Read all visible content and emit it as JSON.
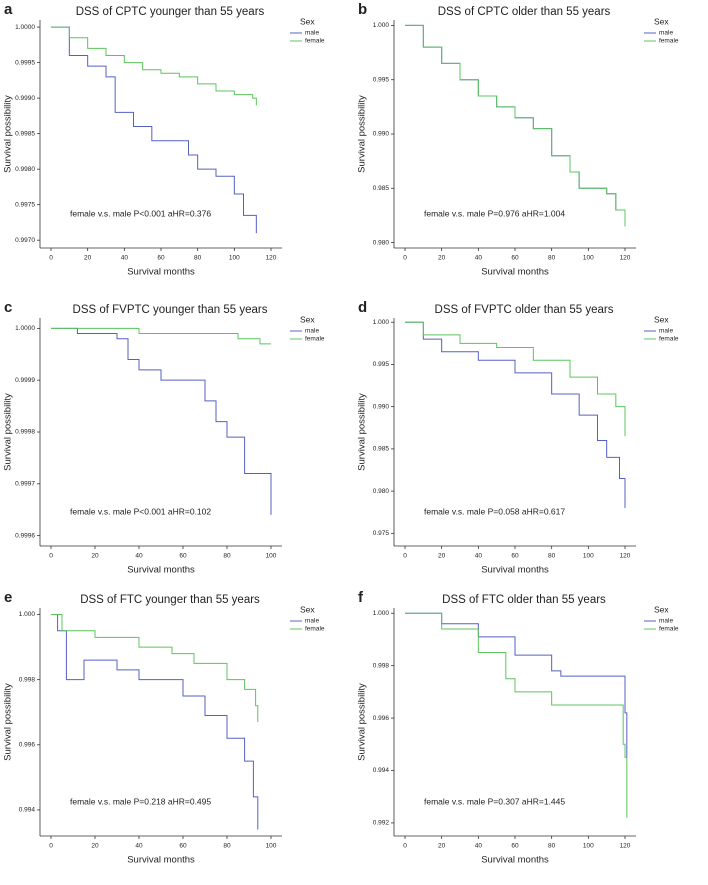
{
  "chart_data": [
    {
      "type": "step",
      "letter": "a",
      "title": "DSS of CPTC younger than 55 years",
      "x_label": "Survival months",
      "y_label": "Survival possibility",
      "annotation": "female v.s. male P<0.001 aHR=0.376",
      "legend_title": "Sex",
      "xlim": [
        -6,
        126
      ],
      "xticks": [
        0,
        20,
        40,
        60,
        80,
        100,
        120
      ],
      "ylim": [
        0.99689,
        1.0001
      ],
      "yticks": [
        {
          "value": 1.0,
          "label": "1.0000"
        },
        {
          "value": 0.9995,
          "label": "0.9995"
        },
        {
          "value": 0.999,
          "label": "0.9990"
        },
        {
          "value": 0.9985,
          "label": "0.9985"
        },
        {
          "value": 0.998,
          "label": "0.9980"
        },
        {
          "value": 0.9975,
          "label": "0.9975"
        },
        {
          "value": 0.997,
          "label": "0.9970"
        }
      ],
      "series": [
        {
          "name": "male",
          "color": "#5560c4",
          "x": [
            0,
            10,
            20,
            30,
            35,
            45,
            55,
            70,
            75,
            80,
            90,
            100,
            105,
            112
          ],
          "values": [
            1,
            0.9996,
            0.99945,
            0.9993,
            0.9988,
            0.9986,
            0.9984,
            0.9984,
            0.9982,
            0.998,
            0.9979,
            0.99765,
            0.99735,
            0.9971
          ]
        },
        {
          "name": "female",
          "color": "#5cc45c",
          "x": [
            0,
            10,
            20,
            30,
            40,
            50,
            60,
            70,
            80,
            90,
            100,
            110,
            112
          ],
          "values": [
            1,
            0.99985,
            0.9997,
            0.9996,
            0.9995,
            0.9994,
            0.99935,
            0.9993,
            0.9992,
            0.9991,
            0.99905,
            0.999,
            0.9989
          ]
        }
      ]
    },
    {
      "type": "step",
      "letter": "b",
      "title": "DSS of CPTC older than 55 years",
      "x_label": "Survival months",
      "y_label": "Survival possibility",
      "annotation": "female v.s. male P=0.976 aHR=1.004",
      "legend_title": "Sex",
      "xlim": [
        -6,
        126
      ],
      "xticks": [
        0,
        20,
        40,
        60,
        80,
        100,
        120
      ],
      "ylim": [
        0.9795,
        1.0005
      ],
      "yticks": [
        {
          "value": 1.0,
          "label": "1.000"
        },
        0.995,
        {
          "value": 0.99,
          "label": "0.990"
        },
        0.985,
        {
          "value": 0.98,
          "label": "0.980"
        }
      ],
      "series": [
        {
          "name": "male",
          "color": "#5560c4",
          "x": [
            0,
            10,
            20,
            30,
            40,
            50,
            60,
            70,
            80,
            90,
            95,
            110,
            115,
            120
          ],
          "values": [
            1,
            0.998,
            0.9965,
            0.995,
            0.9935,
            0.9925,
            0.9915,
            0.9905,
            0.988,
            0.9865,
            0.985,
            0.9845,
            0.983,
            0.9815
          ]
        },
        {
          "name": "female",
          "color": "#5cc45c",
          "x": [
            0,
            10,
            20,
            30,
            40,
            50,
            60,
            70,
            80,
            90,
            95,
            110,
            115,
            120
          ],
          "values": [
            1,
            0.998,
            0.9965,
            0.995,
            0.9935,
            0.9925,
            0.9915,
            0.9905,
            0.988,
            0.9865,
            0.985,
            0.9845,
            0.983,
            0.9815
          ]
        }
      ]
    },
    {
      "type": "step",
      "letter": "c",
      "title": "DSS of FVPTC younger than 55 years",
      "x_label": "Survival months",
      "y_label": "Survival possibility",
      "annotation": "female v.s. male P<0.001 aHR=0.102",
      "legend_title": "Sex",
      "xlim": [
        -5,
        105
      ],
      "xticks": [
        0,
        20,
        40,
        60,
        80,
        100
      ],
      "ylim": [
        0.99958,
        1.00002
      ],
      "yticks": [
        {
          "value": 1.0,
          "label": "1.0000"
        },
        0.9999,
        0.9998,
        0.9997,
        0.9996
      ],
      "series": [
        {
          "name": "male",
          "color": "#5560c4",
          "x": [
            0,
            12,
            30,
            35,
            40,
            50,
            70,
            75,
            80,
            88,
            95,
            100
          ],
          "values": [
            1,
            0.99999,
            0.99998,
            0.99994,
            0.99992,
            0.9999,
            0.99986,
            0.99982,
            0.99979,
            0.99972,
            0.99972,
            0.99964
          ]
        },
        {
          "name": "female",
          "color": "#5cc45c",
          "x": [
            0,
            40,
            70,
            85,
            95,
            100
          ],
          "values": [
            1,
            0.99999,
            0.99999,
            0.99998,
            0.99997,
            0.99997
          ]
        }
      ]
    },
    {
      "type": "step",
      "letter": "d",
      "title": "DSS of FVPTC older than 55 years",
      "x_label": "Survival months",
      "y_label": "Survival possibility",
      "annotation": "female v.s. male P=0.058 aHR=0.617",
      "legend_title": "Sex",
      "xlim": [
        -6,
        126
      ],
      "xticks": [
        0,
        20,
        40,
        60,
        80,
        100,
        120
      ],
      "ylim": [
        0.9735,
        1.0005
      ],
      "yticks": [
        {
          "value": 1.0,
          "label": "1.000"
        },
        0.995,
        {
          "value": 0.99,
          "label": "0.990"
        },
        0.985,
        {
          "value": 0.98,
          "label": "0.980"
        },
        0.975
      ],
      "series": [
        {
          "name": "male",
          "color": "#5560c4",
          "x": [
            0,
            10,
            20,
            40,
            60,
            80,
            95,
            105,
            110,
            117,
            120
          ],
          "values": [
            1,
            0.998,
            0.9965,
            0.9955,
            0.994,
            0.9915,
            0.989,
            0.986,
            0.984,
            0.9815,
            0.978
          ]
        },
        {
          "name": "female",
          "color": "#5cc45c",
          "x": [
            0,
            10,
            30,
            50,
            70,
            90,
            105,
            115,
            120
          ],
          "values": [
            1,
            0.9985,
            0.9975,
            0.997,
            0.9955,
            0.9935,
            0.9915,
            0.99,
            0.9865
          ]
        }
      ]
    },
    {
      "type": "step",
      "letter": "e",
      "title": "DSS of FTC younger than 55 years",
      "x_label": "Survival months",
      "y_label": "Survival possibility",
      "annotation": "female v.s. male P=0.218 aHR=0.495",
      "legend_title": "Sex",
      "xlim": [
        -5,
        105
      ],
      "xticks": [
        0,
        20,
        40,
        60,
        80,
        100
      ],
      "ylim": [
        0.9932,
        1.0002
      ],
      "yticks": [
        {
          "value": 1.0,
          "label": "1.000"
        },
        0.998,
        0.996,
        0.994
      ],
      "series": [
        {
          "name": "male",
          "color": "#5560c4",
          "x": [
            0,
            3,
            7,
            15,
            30,
            40,
            60,
            70,
            80,
            88,
            92,
            94
          ],
          "values": [
            1,
            0.9995,
            0.998,
            0.9986,
            0.9983,
            0.998,
            0.9975,
            0.9969,
            0.9962,
            0.9955,
            0.9944,
            0.9934
          ]
        },
        {
          "name": "female",
          "color": "#5cc45c",
          "x": [
            0,
            5,
            20,
            40,
            55,
            65,
            80,
            88,
            93,
            94
          ],
          "values": [
            1,
            0.9995,
            0.9993,
            0.999,
            0.9988,
            0.9985,
            0.998,
            0.9977,
            0.9972,
            0.9967
          ]
        }
      ]
    },
    {
      "type": "step",
      "letter": "f",
      "title": "DSS of FTC older than 55 years",
      "x_label": "Survival months",
      "y_label": "Survival possibility",
      "annotation": "female v.s. male P=0.307 aHR=1.445",
      "legend_title": "Sex",
      "xlim": [
        -6,
        126
      ],
      "xticks": [
        0,
        20,
        40,
        60,
        80,
        100,
        120
      ],
      "ylim": [
        0.9915,
        1.0002
      ],
      "yticks": [
        {
          "value": 1.0,
          "label": "1.000"
        },
        0.998,
        0.996,
        0.994,
        0.992
      ],
      "series": [
        {
          "name": "male",
          "color": "#5560c4",
          "x": [
            0,
            20,
            40,
            60,
            80,
            85,
            119,
            120,
            121
          ],
          "values": [
            1,
            0.9996,
            0.9991,
            0.9984,
            0.9978,
            0.9976,
            0.9976,
            0.9962,
            0.9945
          ]
        },
        {
          "name": "female",
          "color": "#5cc45c",
          "x": [
            0,
            20,
            40,
            55,
            60,
            80,
            118,
            119,
            120,
            121
          ],
          "values": [
            1,
            0.9994,
            0.9985,
            0.9975,
            0.997,
            0.9965,
            0.9965,
            0.995,
            0.9945,
            0.9922
          ]
        }
      ]
    }
  ]
}
